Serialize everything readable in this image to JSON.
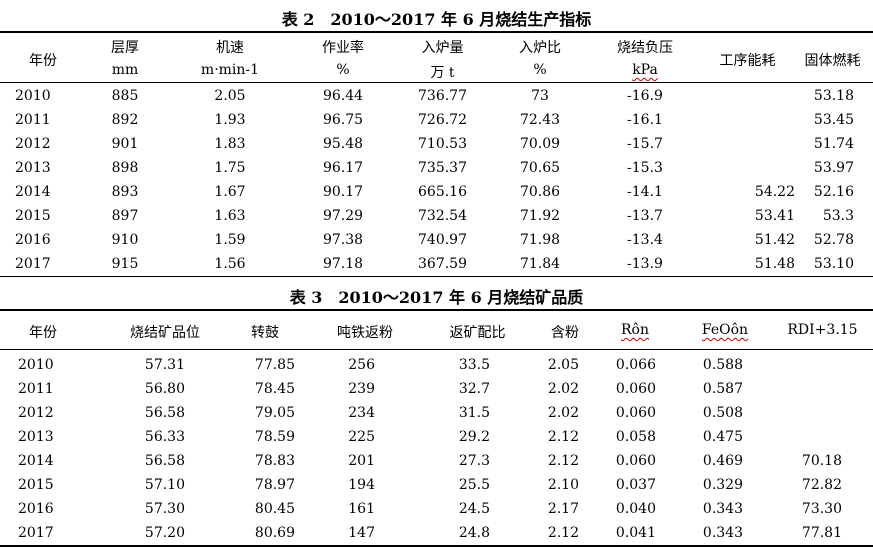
{
  "table2": {
    "title": "表 2　2010～2017 年 6 月烧结生产指标",
    "headers": [
      {
        "line1": "年份",
        "line2": ""
      },
      {
        "line1": "层厚",
        "line2": "mm"
      },
      {
        "line1": "机速",
        "line2": "m·min-1"
      },
      {
        "line1": "作业率",
        "line2": "%"
      },
      {
        "line1": "入炉量",
        "line2": "万 t"
      },
      {
        "line1": "入炉比",
        "line2": "%"
      },
      {
        "line1": "烧结负压",
        "line2": "kPa"
      },
      {
        "line1": "工序能耗",
        "line2": ""
      },
      {
        "line1": "固体燃耗",
        "line2": ""
      }
    ],
    "rows": [
      [
        "2010",
        "885",
        "2.05",
        "96.44",
        "736.77",
        "73",
        "-16.9",
        "",
        "53.18"
      ],
      [
        "2011",
        "892",
        "1.93",
        "96.75",
        "726.72",
        "72.43",
        "-16.1",
        "",
        "53.45"
      ],
      [
        "2012",
        "901",
        "1.83",
        "95.48",
        "710.53",
        "70.09",
        "-15.7",
        "",
        "51.74"
      ],
      [
        "2013",
        "898",
        "1.75",
        "96.17",
        "735.37",
        "70.65",
        "-15.3",
        "",
        "53.97"
      ],
      [
        "2014",
        "893",
        "1.67",
        "90.17",
        "665.16",
        "70.86",
        "-14.1",
        "54.22",
        "52.16"
      ],
      [
        "2015",
        "897",
        "1.63",
        "97.29",
        "732.54",
        "71.92",
        "-13.7",
        "53.41",
        "53.3"
      ],
      [
        "2016",
        "910",
        "1.59",
        "97.38",
        "740.97",
        "71.98",
        "-13.4",
        "51.42",
        "52.78"
      ],
      [
        "2017",
        "915",
        "1.56",
        "97.18",
        "367.59",
        "71.84",
        "-13.9",
        "51.48",
        "53.10"
      ]
    ]
  },
  "table3": {
    "title": "表 3　2010～2017 年 6 月烧结矿品质",
    "headers": [
      "年份",
      "烧结矿品位",
      "转鼓",
      "吨铁返粉",
      "返矿配比",
      "含粉",
      "Rôn",
      "FeOôn",
      "RDI+3.15"
    ],
    "rows": [
      [
        "2010",
        "57.31",
        "77.85",
        "256",
        "33.5",
        "2.05",
        "0.066",
        "0.588",
        ""
      ],
      [
        "2011",
        "56.80",
        "78.45",
        "239",
        "32.7",
        "2.02",
        "0.060",
        "0.587",
        ""
      ],
      [
        "2012",
        "56.58",
        "79.05",
        "234",
        "31.5",
        "2.02",
        "0.060",
        "0.508",
        ""
      ],
      [
        "2013",
        "56.33",
        "78.59",
        "225",
        "29.2",
        "2.12",
        "0.058",
        "0.475",
        ""
      ],
      [
        "2014",
        "56.58",
        "78.83",
        "201",
        "27.3",
        "2.12",
        "0.060",
        "0.469",
        "70.18"
      ],
      [
        "2015",
        "57.10",
        "78.97",
        "194",
        "25.5",
        "2.10",
        "0.037",
        "0.329",
        "72.82"
      ],
      [
        "2016",
        "57.30",
        "80.45",
        "161",
        "24.5",
        "2.17",
        "0.040",
        "0.343",
        "73.30"
      ],
      [
        "2017",
        "57.20",
        "80.69",
        "147",
        "24.8",
        "2.12",
        "0.041",
        "0.343",
        "77.81"
      ]
    ]
  }
}
